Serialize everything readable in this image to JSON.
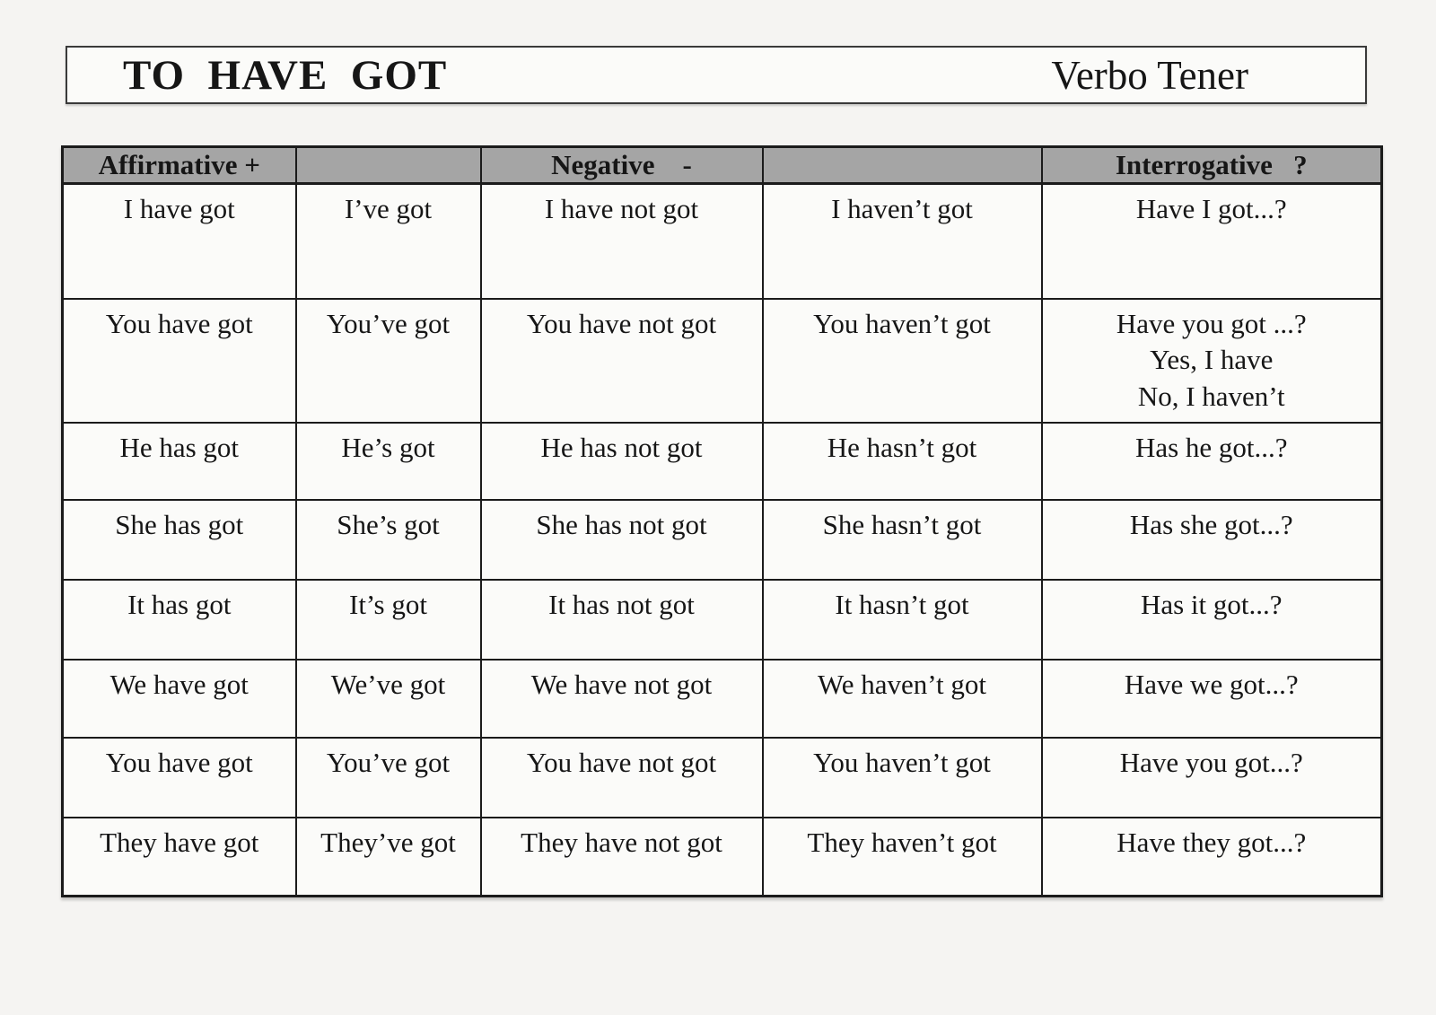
{
  "page": {
    "title": "TO  HAVE  GOT",
    "subtitle": "Verbo Tener"
  },
  "table": {
    "headers": [
      "Affirmative +",
      "",
      "Negative    -",
      "",
      "Interrogative   ?"
    ],
    "rows": [
      [
        "I have got",
        "I’ve got",
        "I have not got",
        "I haven’t got",
        "Have I got...?"
      ],
      [
        "You have got",
        "You’ve got",
        "You have not got",
        "You haven’t got",
        [
          "Have you got ...?",
          "Yes, I have",
          "No, I haven’t"
        ]
      ],
      [
        "He has got",
        "He’s got",
        "He has not got",
        "He hasn’t got",
        "Has he got...?"
      ],
      [
        "She has got",
        "She’s got",
        "She has not got",
        "She hasn’t got",
        "Has she got...?"
      ],
      [
        "It has got",
        "It’s got",
        "It has not got",
        "It hasn’t got",
        "Has it got...?"
      ],
      [
        "We have got",
        "We’ve got",
        "We have not got",
        "We haven’t got",
        "Have we got...?"
      ],
      [
        "You have got",
        "You’ve got",
        "You have not got",
        "You haven’t got",
        "Have you got...?"
      ],
      [
        "They have got",
        "They’ve got",
        "They have not got",
        "They haven’t got",
        "Have they got...?"
      ]
    ]
  },
  "colors": {
    "page_background": "#f5f4f2",
    "cell_background": "#fbfbf9",
    "header_background": "#a5a5a5",
    "border": "#1b1b1b",
    "text": "#161616"
  }
}
